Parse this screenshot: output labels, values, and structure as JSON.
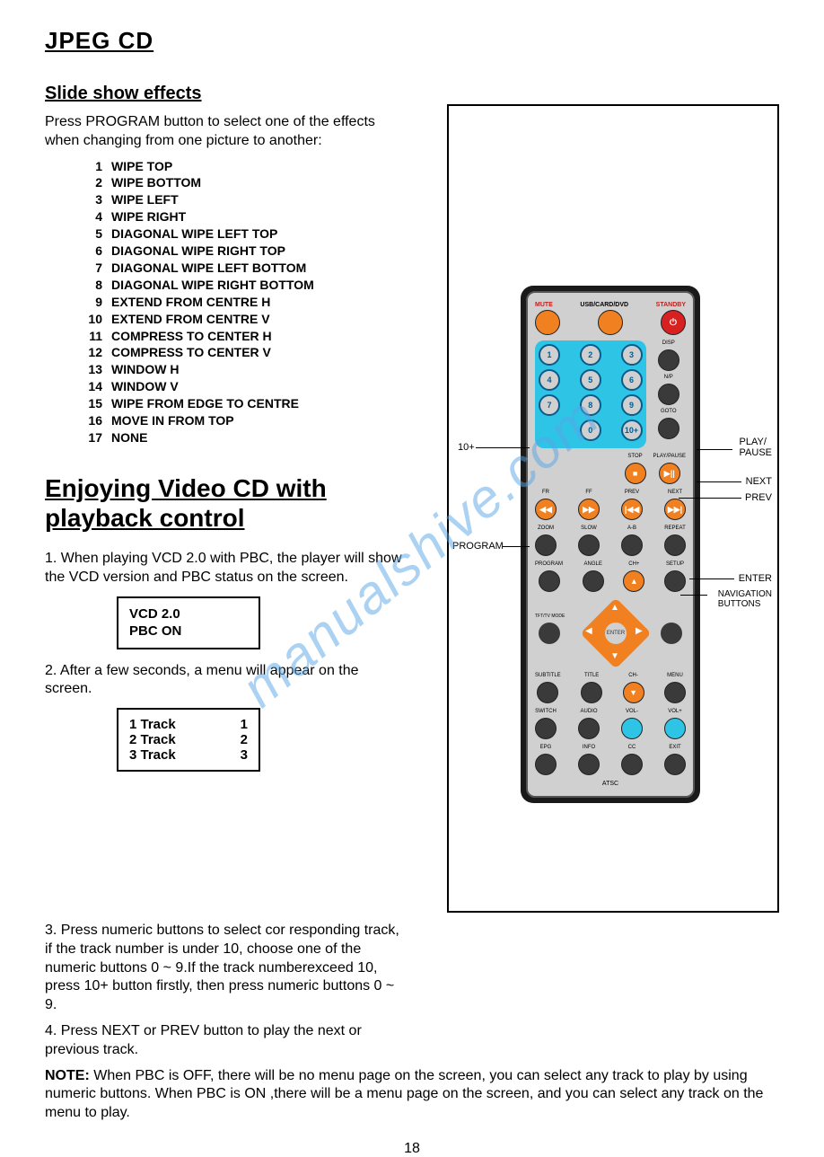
{
  "title": "JPEG CD",
  "slideshow": {
    "heading": "Slide show effects",
    "intro": "Press PROGRAM button to select one of the effects when changing from one picture to another:",
    "effects": [
      "WIPE TOP",
      "WIPE BOTTOM",
      "WIPE LEFT",
      "WIPE RIGHT",
      "DIAGONAL WIPE LEFT TOP",
      "DIAGONAL WIPE RIGHT TOP",
      "DIAGONAL WIPE LEFT BOTTOM",
      "DIAGONAL WIPE RIGHT BOTTOM",
      "EXTEND FROM CENTRE H",
      "EXTEND FROM CENTRE V",
      "COMPRESS TO CENTER H",
      "COMPRESS TO CENTER V",
      "WINDOW H",
      "WINDOW V",
      "WIPE FROM EDGE TO CENTRE",
      "MOVE IN FROM TOP",
      "NONE"
    ]
  },
  "vcd": {
    "heading": "Enjoying Video CD with playback control",
    "step1": "1. When playing VCD 2.0 with PBC, the player will show the VCD version and PBC status on the screen.",
    "box1_l1": "VCD 2.0",
    "box1_l2": "PBC ON",
    "step2": "2. After a few seconds, a menu will appear on the screen.",
    "tracks": [
      [
        "1 Track",
        "1"
      ],
      [
        "2 Track",
        "2"
      ],
      [
        "3 Track",
        "3"
      ]
    ],
    "step3": "3. Press numeric buttons to select cor responding track, if the track number is under 10, choose one of the numeric buttons 0 ~ 9.If the track numberexceed 10, press 10+ button firstly, then press numeric buttons 0 ~ 9.",
    "step4": "4. Press NEXT or PREV button to play the next or previous track.",
    "note_label": "NOTE:",
    "note": " When PBC is OFF, there will be no menu page on the screen, you can select any track to play by using numeric buttons. When PBC is ON ,there will be a menu page on the screen, and you can select any track on the menu to play."
  },
  "remote": {
    "top_labels": {
      "mute": "MUTE",
      "usb": "USB/CARD/DVD",
      "standby": "STANDBY"
    },
    "keypad": [
      "1",
      "2",
      "3",
      "4",
      "5",
      "6",
      "7",
      "8",
      "9",
      "0",
      "10+"
    ],
    "row_labels": {
      "disp": "DISP",
      "np": "N/P",
      "goto": "GOTO",
      "stop": "STOP",
      "play": "PLAY/PAUSE",
      "fr": "FR",
      "ff": "FF",
      "prev": "PREV",
      "next": "NEXT",
      "zoom": "ZOOM",
      "slow": "SLOW",
      "ab": "A-B",
      "repeat": "REPEAT",
      "program": "PROGRAM",
      "angle": "ANGLE",
      "chp": "CH+",
      "setup": "SETUP",
      "tft": "TFT/TV MODE",
      "enter": "ENTER",
      "subtitle": "SUBTITLE",
      "title": "TITLE",
      "chm": "CH-",
      "menu": "MENU",
      "switch": "SWITCH",
      "audio": "AUDIO",
      "volm": "VOL-",
      "volp": "VOL+",
      "epg": "EPG",
      "info": "INFO",
      "cc": "CC",
      "exit": "EXIT",
      "atsc": "ATSC"
    },
    "callouts": {
      "tenplus": "10+",
      "program": "PROGRAM",
      "playpause": "PLAY/\nPAUSE",
      "next": "NEXT",
      "prev": "PREV",
      "enter": "ENTER",
      "nav": "NAVIGATION\nBUTTONS"
    }
  },
  "page_number": "18",
  "watermark": "manualshive.com",
  "colors": {
    "orange": "#f08020",
    "blue": "#2ec4e6",
    "dark": "#3a3a3a",
    "red": "#d82020"
  }
}
